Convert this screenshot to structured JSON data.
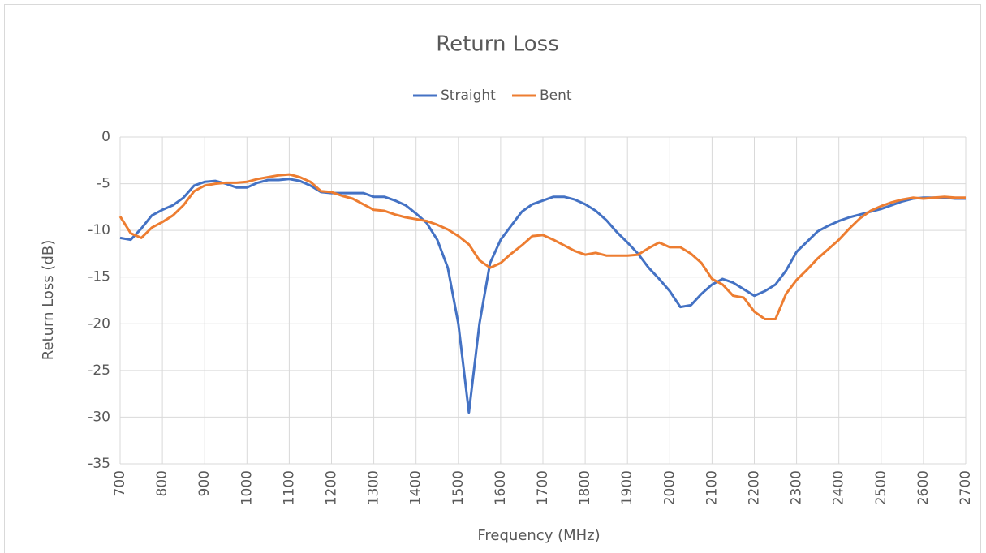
{
  "chart_data": {
    "type": "line",
    "title": "Return Loss",
    "x_label": "Frequency (MHz)",
    "y_label": "Return Loss (dB)",
    "x": [
      700,
      725,
      750,
      775,
      800,
      825,
      850,
      875,
      900,
      925,
      950,
      975,
      1000,
      1025,
      1050,
      1075,
      1100,
      1125,
      1150,
      1175,
      1200,
      1225,
      1250,
      1275,
      1300,
      1325,
      1350,
      1375,
      1400,
      1425,
      1450,
      1475,
      1500,
      1525,
      1550,
      1575,
      1600,
      1625,
      1650,
      1675,
      1700,
      1725,
      1750,
      1775,
      1800,
      1825,
      1850,
      1875,
      1900,
      1925,
      1950,
      1975,
      2000,
      2025,
      2050,
      2075,
      2100,
      2125,
      2150,
      2175,
      2200,
      2225,
      2250,
      2275,
      2300,
      2325,
      2350,
      2375,
      2400,
      2425,
      2450,
      2475,
      2500,
      2525,
      2550,
      2575,
      2600,
      2625,
      2650,
      2675,
      2700
    ],
    "series": [
      {
        "name": "Straight",
        "color": "#4472c4",
        "values": [
          -10.8,
          -11,
          -9.8,
          -8.4,
          -7.8,
          -7.3,
          -6.5,
          -5.2,
          -4.8,
          -4.7,
          -5.0,
          -5.4,
          -5.4,
          -4.9,
          -4.6,
          -4.6,
          -4.5,
          -4.7,
          -5.2,
          -5.9,
          -6.0,
          -6.0,
          -6.0,
          -6.0,
          -6.4,
          -6.4,
          -6.8,
          -7.3,
          -8.2,
          -9.2,
          -11.0,
          -14.0,
          -20.0,
          -29.5,
          -20.0,
          -13.5,
          -11.0,
          -9.5,
          -8.0,
          -7.2,
          -6.8,
          -6.4,
          -6.4,
          -6.7,
          -7.2,
          -7.9,
          -8.9,
          -10.2,
          -11.3,
          -12.5,
          -14.0,
          -15.2,
          -16.5,
          -18.2,
          -18.0,
          -16.8,
          -15.8,
          -15.2,
          -15.6,
          -16.3,
          -17.0,
          -16.5,
          -15.8,
          -14.3,
          -12.3,
          -11.2,
          -10.1,
          -9.5,
          -9.0,
          -8.6,
          -8.3,
          -8.0,
          -7.7,
          -7.3,
          -6.9,
          -6.6,
          -6.5,
          -6.5,
          -6.5,
          -6.6,
          -6.6
        ]
      },
      {
        "name": "Bent",
        "color": "#ed7d31",
        "values": [
          -8.5,
          -10.3,
          -10.8,
          -9.7,
          -9.1,
          -8.4,
          -7.3,
          -5.8,
          -5.2,
          -5.0,
          -4.9,
          -4.9,
          -4.8,
          -4.5,
          -4.3,
          -4.1,
          -4.0,
          -4.3,
          -4.8,
          -5.8,
          -5.9,
          -6.3,
          -6.6,
          -7.2,
          -7.8,
          -7.9,
          -8.3,
          -8.6,
          -8.8,
          -9.0,
          -9.4,
          -9.9,
          -10.6,
          -11.5,
          -13.2,
          -14.0,
          -13.5,
          -12.5,
          -11.6,
          -10.6,
          -10.5,
          -11.0,
          -11.6,
          -12.2,
          -12.6,
          -12.4,
          -12.7,
          -12.7,
          -12.7,
          -12.6,
          -11.9,
          -11.3,
          -11.8,
          -11.8,
          -12.5,
          -13.5,
          -15.2,
          -15.8,
          -17.0,
          -17.2,
          -18.7,
          -19.5,
          -19.5,
          -16.8,
          -15.3,
          -14.2,
          -13.0,
          -12.0,
          -11.0,
          -9.8,
          -8.7,
          -7.9,
          -7.4,
          -7.0,
          -6.7,
          -6.5,
          -6.6,
          -6.5,
          -6.4,
          -6.5,
          -6.5
        ]
      }
    ],
    "xlim": [
      700,
      2700
    ],
    "xticks": [
      700,
      800,
      900,
      1000,
      1100,
      1200,
      1300,
      1400,
      1500,
      1600,
      1700,
      1800,
      1900,
      2000,
      2100,
      2200,
      2300,
      2400,
      2500,
      2600,
      2700
    ],
    "ylim": [
      -35,
      0
    ],
    "yticks": [
      -35,
      -30,
      -25,
      -20,
      -15,
      -10,
      -5,
      0
    ],
    "grid": true,
    "legend": "top"
  }
}
